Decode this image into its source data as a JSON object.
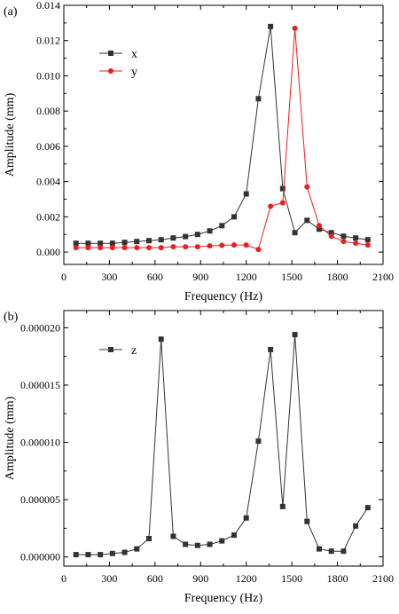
{
  "chart_data": [
    {
      "panel_label": "(a)",
      "type": "line",
      "xlabel": "Frequency (Hz)",
      "ylabel": "Amplitude (mm)",
      "xlim": [
        0,
        2100
      ],
      "ylim": [
        -0.0007,
        0.014
      ],
      "xticks": [
        0,
        300,
        600,
        900,
        1200,
        1500,
        1800,
        2100
      ],
      "xtick_labels": [
        "0",
        "300",
        "600",
        "900",
        "1200",
        "1500",
        "1800",
        "2100"
      ],
      "yticks": [
        0,
        0.002,
        0.004,
        0.006,
        0.008,
        0.01,
        0.012,
        0.014
      ],
      "ytick_labels": [
        "0.000",
        "0.002",
        "0.004",
        "0.006",
        "0.008",
        "0.010",
        "0.012",
        "0.014"
      ],
      "legend_placement": "top-left",
      "grid": false,
      "series": [
        {
          "name": "x",
          "color": "#333333",
          "marker": "square",
          "x": [
            80,
            160,
            240,
            320,
            400,
            480,
            560,
            640,
            720,
            800,
            880,
            960,
            1040,
            1120,
            1200,
            1280,
            1360,
            1440,
            1520,
            1600,
            1680,
            1760,
            1840,
            1920,
            2000
          ],
          "y": [
            0.0005,
            0.0005,
            0.0005,
            0.0005,
            0.00055,
            0.0006,
            0.00065,
            0.0007,
            0.0008,
            0.00088,
            0.001,
            0.0012,
            0.0015,
            0.002,
            0.0033,
            0.0087,
            0.0128,
            0.0036,
            0.0011,
            0.0018,
            0.0013,
            0.0011,
            0.0009,
            0.0008,
            0.0007
          ]
        },
        {
          "name": "y",
          "color": "#ee1c1c",
          "marker": "circle",
          "x": [
            80,
            160,
            240,
            320,
            400,
            480,
            560,
            640,
            720,
            800,
            880,
            960,
            1040,
            1120,
            1200,
            1280,
            1360,
            1440,
            1520,
            1600,
            1680,
            1760,
            1840,
            1920,
            2000
          ],
          "y": [
            0.00025,
            0.00025,
            0.00025,
            0.00025,
            0.00025,
            0.00025,
            0.00025,
            0.00025,
            0.0003,
            0.0003,
            0.0003,
            0.00035,
            0.00038,
            0.0004,
            0.0004,
            0.00015,
            0.0026,
            0.0028,
            0.0127,
            0.0037,
            0.0015,
            0.0009,
            0.0006,
            0.0005,
            0.0004
          ]
        }
      ]
    },
    {
      "panel_label": "(b)",
      "type": "line",
      "xlabel": "Frequency (Hz)",
      "ylabel": "Amplitude (mm)",
      "xlim": [
        0,
        2100
      ],
      "ylim": [
        -8e-07,
        2.15e-05
      ],
      "xticks": [
        0,
        300,
        600,
        900,
        1200,
        1500,
        1800,
        2100
      ],
      "xtick_labels": [
        "0",
        "300",
        "600",
        "900",
        "1200",
        "1500",
        "1800",
        "2100"
      ],
      "yticks": [
        0,
        5e-06,
        1e-05,
        1.5e-05,
        2e-05
      ],
      "ytick_labels": [
        "0.000000",
        "0.000005",
        "0.000010",
        "0.000015",
        "0.000020"
      ],
      "legend_placement": "top-left",
      "grid": false,
      "series": [
        {
          "name": "z",
          "color": "#333333",
          "marker": "square",
          "x": [
            80,
            160,
            240,
            320,
            400,
            480,
            560,
            640,
            720,
            800,
            880,
            960,
            1040,
            1120,
            1200,
            1280,
            1360,
            1440,
            1520,
            1600,
            1680,
            1760,
            1840,
            1920,
            2000
          ],
          "y": [
            2e-07,
            2e-07,
            2e-07,
            3e-07,
            4e-07,
            7e-07,
            1.6e-06,
            1.9e-05,
            1.8e-06,
            1.1e-06,
            1e-06,
            1.1e-06,
            1.4e-06,
            1.9e-06,
            3.4e-06,
            1.01e-05,
            1.81e-05,
            4.4e-06,
            1.94e-05,
            3.1e-06,
            7e-07,
            5e-07,
            5e-07,
            2.7e-06,
            4.3e-06
          ]
        }
      ]
    }
  ]
}
